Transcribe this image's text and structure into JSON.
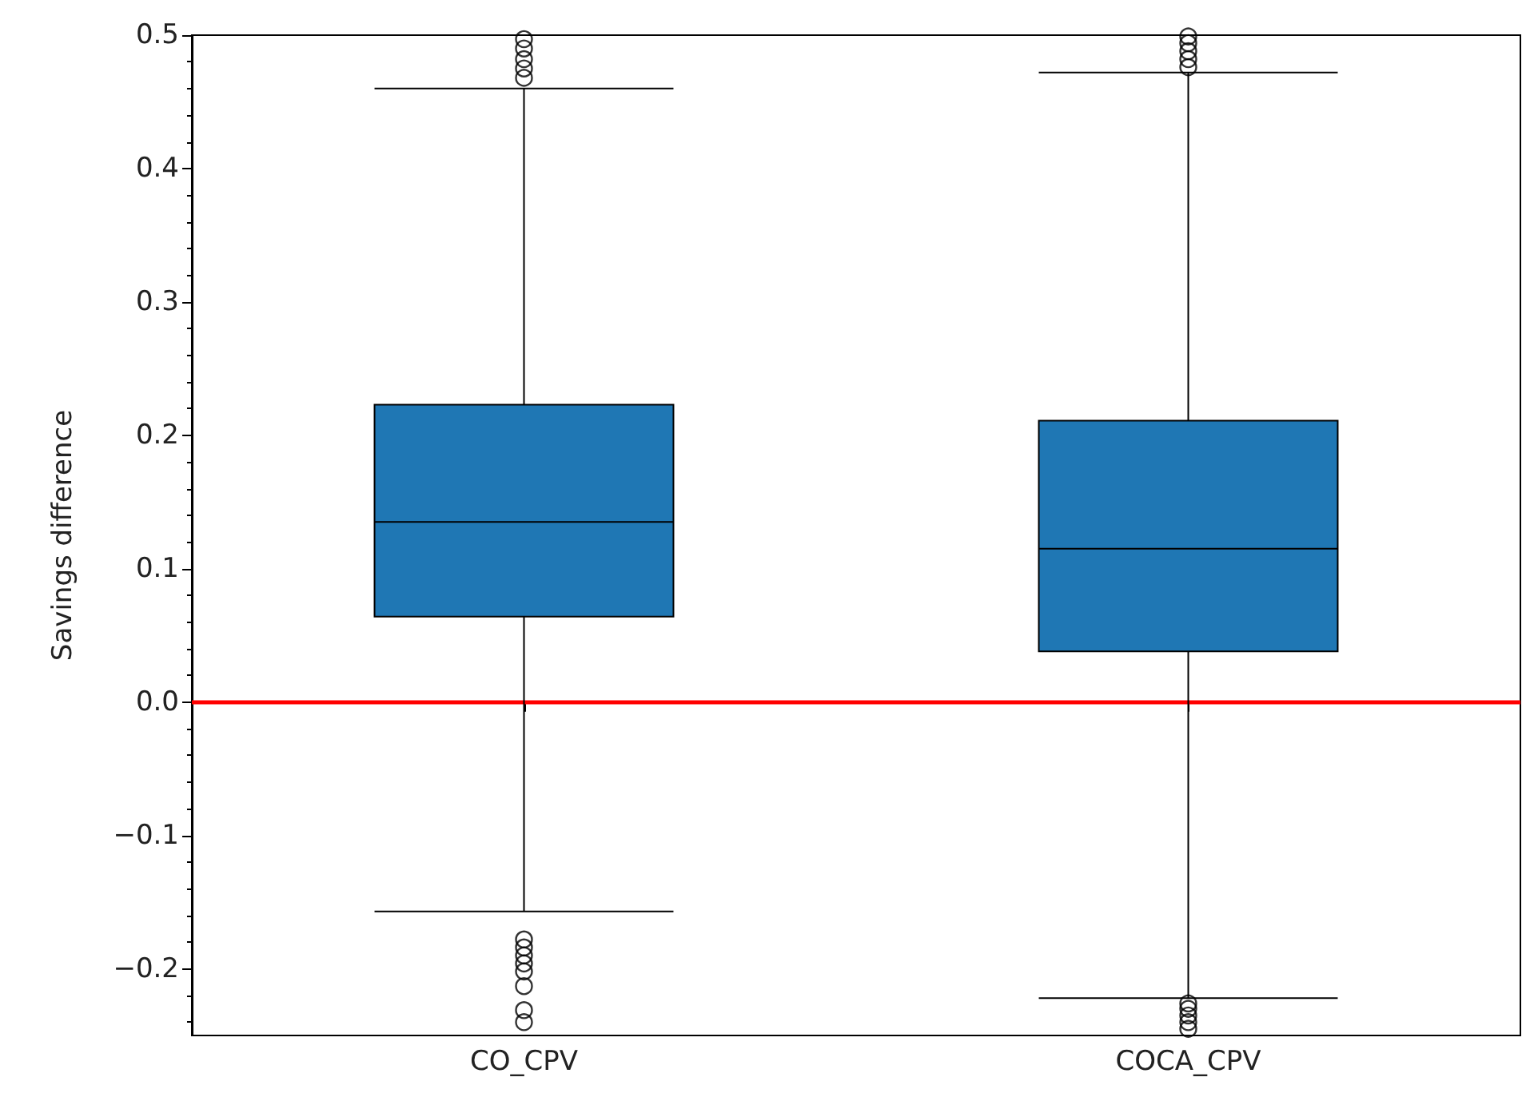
{
  "chart_data": {
    "type": "box",
    "ylabel": "Savings difference",
    "categories": [
      "CO_CPV",
      "COCA_CPV"
    ],
    "color": "#1f77b4",
    "boxes": [
      {
        "low": -0.157,
        "q1": 0.064,
        "median": 0.135,
        "q3": 0.223,
        "high": 0.46,
        "outliers": [
          0.468,
          0.475,
          0.482,
          0.49,
          0.497,
          -0.178,
          -0.184,
          -0.19,
          -0.196,
          -0.202,
          -0.213,
          -0.231,
          -0.24
        ]
      },
      {
        "low": -0.222,
        "q1": 0.038,
        "median": 0.115,
        "q3": 0.211,
        "high": 0.472,
        "outliers": [
          0.476,
          0.482,
          0.488,
          0.494,
          0.499,
          -0.226,
          -0.23,
          -0.235,
          -0.24,
          -0.245
        ]
      }
    ],
    "ylim": [
      -0.25,
      0.5
    ],
    "yticks": [
      -0.2,
      -0.1,
      {
        "value": 0,
        "label": "0.0"
      },
      0.1,
      0.2,
      0.3,
      0.4,
      0.5
    ],
    "ref_lines": [
      {
        "axis": "y",
        "value": 0,
        "color": "#ff0000"
      }
    ],
    "grid": false,
    "legend": false
  }
}
